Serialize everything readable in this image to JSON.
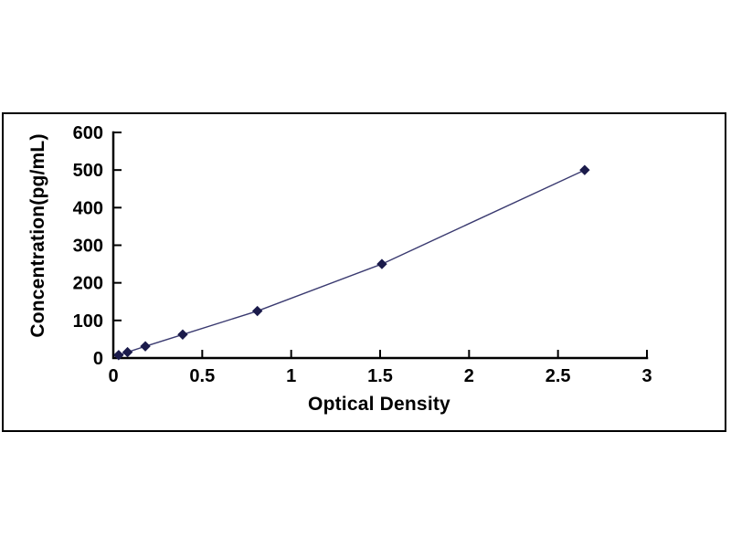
{
  "figure": {
    "background": "#ffffff",
    "frame_color": "#000000"
  },
  "chart_data": {
    "type": "line",
    "title": "",
    "xlabel": "Optical Density",
    "ylabel": "Concentration(pg/mL)",
    "x": [
      0.03,
      0.08,
      0.18,
      0.39,
      0.81,
      1.51,
      2.65
    ],
    "y": [
      7.8,
      15.6,
      31.2,
      62.5,
      125,
      250,
      500
    ],
    "xlim": [
      0,
      3
    ],
    "ylim": [
      0,
      600
    ],
    "x_ticks": [
      0,
      0.5,
      1,
      1.5,
      2,
      2.5,
      3
    ],
    "y_ticks": [
      0,
      100,
      200,
      300,
      400,
      500,
      600
    ],
    "grid": "off",
    "legend": "none",
    "marker": "diamond",
    "colors": {
      "line": "#3a3a70",
      "marker": "#1b1b4b",
      "axis": "#000000",
      "text": "#000000",
      "background": "#ffffff"
    }
  }
}
